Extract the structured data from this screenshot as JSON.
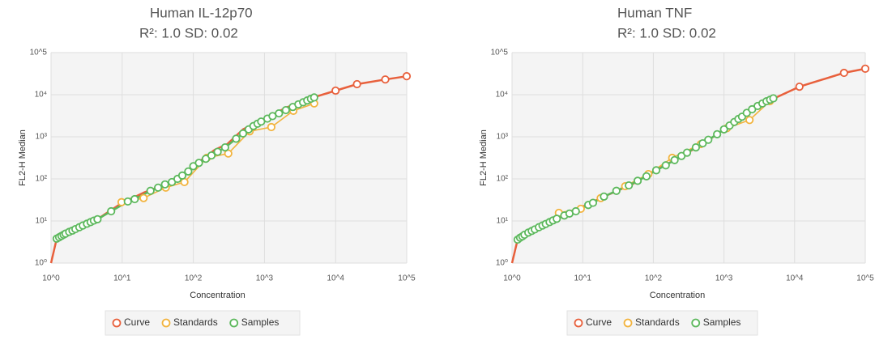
{
  "chart_data": [
    {
      "type": "line",
      "title": "Human IL-12p70",
      "subtitle": "R²: 1.0 SD: 0.02",
      "x_label": "Concentration",
      "y_label": "FL2-H Median",
      "log_x": true,
      "log_y": true,
      "grid": true,
      "legend": "bottom",
      "xlim": [
        1,
        100000
      ],
      "ylim": [
        1,
        100000
      ],
      "xticks": [
        {
          "value": 1,
          "label": "10^0"
        },
        {
          "value": 10,
          "label": "10^1"
        },
        {
          "value": 100,
          "label": "10^2"
        },
        {
          "value": 1000,
          "label": "10^3"
        },
        {
          "value": 10000,
          "label": "10^4"
        },
        {
          "value": 100000,
          "label": "10^5"
        }
      ],
      "yticks": [
        {
          "value": 1,
          "label": "10⁰"
        },
        {
          "value": 10,
          "label": "10¹"
        },
        {
          "value": 100,
          "label": "10²"
        },
        {
          "value": 1000,
          "label": "10³"
        },
        {
          "value": 10000,
          "label": "10⁴"
        },
        {
          "value": 100000,
          "label": "10^5"
        }
      ],
      "series": [
        {
          "name": "Curve",
          "color": "#e8603c",
          "x": [
            1,
            1.2,
            2,
            5,
            10,
            20,
            50,
            100,
            200,
            300,
            500,
            1000,
            2000,
            5000,
            10000,
            20000,
            50000,
            100000
          ],
          "values": [
            1,
            3.8,
            5.9,
            12.5,
            27,
            47,
            84,
            200,
            490,
            670,
            1500,
            2650,
            4900,
            8700,
            12500,
            17800,
            23000,
            27500
          ]
        },
        {
          "name": "Standards",
          "color": "#f2b33d",
          "x": [
            9.8,
            20,
            41,
            75,
            155,
            310,
            620,
            1250,
            2550,
            5000
          ],
          "values": [
            28,
            35,
            62,
            84,
            316,
            400,
            1350,
            1700,
            4150,
            6200
          ]
        },
        {
          "name": "Samples",
          "color": "#5cb85c",
          "x": [
            1.2,
            1.3,
            1.4,
            1.5,
            1.6,
            1.8,
            2,
            2.2,
            2.5,
            2.8,
            3.2,
            3.6,
            4,
            4.5,
            7,
            12,
            15,
            25,
            32,
            40,
            50,
            60,
            70,
            85,
            100,
            120,
            150,
            180,
            220,
            280,
            400,
            500,
            600,
            700,
            800,
            900,
            1100,
            1300,
            1600,
            2000,
            2500,
            3000,
            3500,
            4000,
            4500,
            5000
          ],
          "values": [
            3.8,
            4.1,
            4.4,
            4.7,
            5,
            5.5,
            5.9,
            6.4,
            7.1,
            7.8,
            8.6,
            9.4,
            10.2,
            11,
            17,
            29,
            33,
            52,
            62,
            74,
            84,
            100,
            120,
            150,
            200,
            240,
            300,
            360,
            440,
            560,
            900,
            1200,
            1500,
            1800,
            2050,
            2300,
            2700,
            3100,
            3600,
            4300,
            5100,
            5900,
            6600,
            7300,
            8000,
            8600
          ]
        }
      ]
    },
    {
      "type": "line",
      "title": "Human TNF",
      "subtitle": "R²: 1.0 SD: 0.02",
      "x_label": "Concentration",
      "y_label": "FL2-H Median",
      "log_x": true,
      "log_y": true,
      "grid": true,
      "legend": "bottom",
      "xlim": [
        1,
        100000
      ],
      "ylim": [
        1,
        100000
      ],
      "xticks": [
        {
          "value": 1,
          "label": "10^0"
        },
        {
          "value": 10,
          "label": "10^1"
        },
        {
          "value": 100,
          "label": "10^2"
        },
        {
          "value": 1000,
          "label": "10^3"
        },
        {
          "value": 10000,
          "label": "10^4"
        },
        {
          "value": 100000,
          "label": "10^5"
        }
      ],
      "yticks": [
        {
          "value": 1,
          "label": "10⁰"
        },
        {
          "value": 10,
          "label": "10¹"
        },
        {
          "value": 100,
          "label": "10²"
        },
        {
          "value": 1000,
          "label": "10³"
        },
        {
          "value": 10000,
          "label": "10⁴"
        },
        {
          "value": 100000,
          "label": "10^5"
        }
      ],
      "series": [
        {
          "name": "Curve",
          "color": "#e8603c",
          "x": [
            1,
            1.2,
            2,
            5,
            10,
            20,
            50,
            100,
            200,
            500,
            1000,
            2000,
            5000,
            11700,
            50000,
            100000
          ],
          "values": [
            1,
            3.6,
            6.7,
            14,
            22,
            38,
            74,
            150,
            280,
            670,
            1500,
            3600,
            8000,
            15500,
            33000,
            41500
          ]
        },
        {
          "name": "Standards",
          "color": "#f2b33d",
          "x": [
            4.6,
            9.4,
            18,
            40,
            85,
            185,
            470,
            1100,
            2300,
            4450
          ],
          "values": [
            15.6,
            19.5,
            35,
            67,
            130,
            316,
            670,
            1600,
            2500,
            7000
          ]
        },
        {
          "name": "Samples",
          "color": "#5cb85c",
          "x": [
            1.2,
            1.3,
            1.4,
            1.5,
            1.7,
            1.9,
            2.1,
            2.4,
            2.7,
            3,
            3.4,
            3.8,
            4.3,
            5.5,
            6.5,
            8,
            12,
            14,
            20,
            30,
            45,
            60,
            80,
            110,
            150,
            200,
            250,
            300,
            400,
            500,
            600,
            800,
            1000,
            1200,
            1400,
            1600,
            1800,
            2100,
            2500,
            3000,
            3500,
            4000,
            4500,
            5000
          ],
          "values": [
            3.6,
            4,
            4.3,
            4.7,
            5.3,
            5.8,
            6.3,
            7.1,
            7.8,
            8.5,
            9.4,
            10.3,
            11.3,
            13.5,
            15,
            17,
            24,
            27,
            38,
            52,
            70,
            90,
            115,
            160,
            210,
            280,
            350,
            420,
            560,
            700,
            850,
            1150,
            1500,
            1850,
            2250,
            2650,
            3000,
            3700,
            4500,
            5400,
            6200,
            7000,
            7600,
            8200
          ]
        }
      ]
    }
  ]
}
